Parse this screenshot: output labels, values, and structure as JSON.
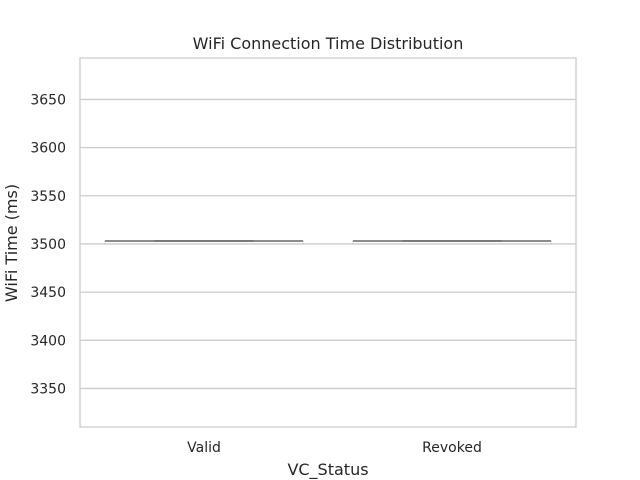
{
  "chart_data": {
    "type": "box",
    "title": "WiFi Connection Time Distribution",
    "xlabel": "VC_Status",
    "ylabel": "WiFi Time (ms)",
    "categories": [
      "Valid",
      "Revoked"
    ],
    "values": [
      3503,
      3503
    ],
    "ylim": [
      3310,
      3693
    ],
    "yticks": [
      3350,
      3400,
      3450,
      3500,
      3550,
      3600,
      3650
    ],
    "grid": true,
    "box_color": "#666666",
    "grid_color": "#cccccc"
  }
}
